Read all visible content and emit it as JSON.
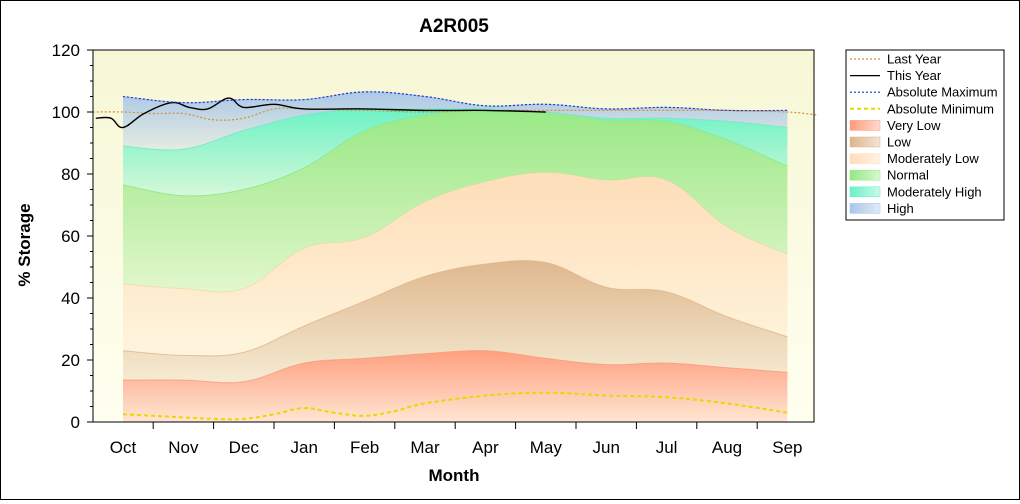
{
  "chart_data": {
    "type": "area",
    "title": "A2R005",
    "xlabel": "Month",
    "ylabel": "% Storage",
    "ylim": [
      0,
      120
    ],
    "yticks": [
      0,
      20,
      40,
      60,
      80,
      100,
      120
    ],
    "categories": [
      "Oct",
      "Nov",
      "Dec",
      "Jan",
      "Feb",
      "Mar",
      "Apr",
      "May",
      "Jun",
      "Jul",
      "Aug",
      "Sep"
    ],
    "x": [
      0,
      1,
      2,
      3,
      4,
      5,
      6,
      7,
      8,
      9,
      10,
      11
    ],
    "grid": false,
    "legend_position": "right",
    "bands": [
      {
        "name": "Very Low",
        "color": "#ff9a7a",
        "upper": [
          13.5,
          13.5,
          13,
          19,
          20.5,
          22,
          23,
          20.5,
          18.5,
          19,
          17.5,
          16
        ]
      },
      {
        "name": "Low",
        "color": "#ddb48a",
        "upper": [
          23,
          21.5,
          22.5,
          31,
          39,
          47,
          51,
          51.5,
          43.5,
          42,
          34,
          27.5
        ]
      },
      {
        "name": "Moderately Low",
        "color": "#ffdcb8",
        "upper": [
          44.5,
          43,
          43,
          56,
          59.5,
          71,
          77.5,
          80.5,
          78,
          78,
          63,
          54
        ]
      },
      {
        "name": "Normal",
        "color": "#94e882",
        "upper": [
          76.5,
          73,
          75,
          82,
          94,
          99,
          100.5,
          100,
          97.5,
          97,
          91,
          82.5
        ]
      },
      {
        "name": "Moderately High",
        "color": "#66f2c4",
        "upper": [
          89,
          88,
          94,
          99,
          101,
          101,
          101,
          100,
          98,
          98,
          97,
          95
        ]
      },
      {
        "name": "High",
        "color": "#a8c6e8",
        "upper": [
          105,
          103,
          104,
          104,
          106.5,
          105,
          102,
          102.5,
          101,
          101.5,
          100.5,
          100.5
        ]
      }
    ],
    "series": [
      {
        "name": "Last Year",
        "color": "#d4903c",
        "style": "dotted",
        "x": [
          -0.5,
          0,
          0.5,
          1,
          1.5,
          2,
          2.5,
          3,
          4,
          5,
          6,
          7,
          8,
          9,
          10,
          11,
          11.5
        ],
        "values": [
          100,
          100,
          99.5,
          99.5,
          97.5,
          98,
          101,
          101,
          100.5,
          100,
          100.5,
          100.5,
          100.5,
          100.5,
          100.5,
          100,
          99
        ]
      },
      {
        "name": "This Year",
        "color": "#000000",
        "style": "solid",
        "x": [
          -0.45,
          -0.2,
          0,
          0.35,
          0.8,
          1.1,
          1.4,
          1.75,
          2,
          2.5,
          3,
          4,
          5,
          6,
          7
        ],
        "values": [
          98,
          98,
          95,
          99.5,
          103,
          101.5,
          101,
          104.5,
          101.5,
          102.5,
          101,
          101,
          100.5,
          100.5,
          100
        ]
      },
      {
        "name": "Absolute Maximum",
        "color": "#2233cc",
        "style": "dotted",
        "x": [
          0,
          1,
          2,
          3,
          4,
          5,
          6,
          7,
          8,
          9,
          10,
          11
        ],
        "values": [
          105,
          103,
          104,
          104,
          106.5,
          105,
          102,
          102.5,
          101,
          101.5,
          100.5,
          100.5
        ]
      },
      {
        "name": "Absolute Minimum",
        "color": "#e8d800",
        "style": "dashed",
        "x": [
          0,
          0.5,
          1,
          1.5,
          2,
          2.5,
          3,
          3.5,
          4,
          4.5,
          5,
          6,
          7,
          8,
          9,
          10,
          11
        ],
        "values": [
          2.5,
          2,
          1.5,
          1,
          1,
          2.5,
          4.5,
          3,
          2,
          3.5,
          6,
          8.5,
          9.5,
          8.5,
          8,
          6,
          3
        ]
      }
    ],
    "legend": [
      {
        "label": "Last Year",
        "kind": "line",
        "color": "#d4903c",
        "style": "dotted"
      },
      {
        "label": "This Year",
        "kind": "line",
        "color": "#000000",
        "style": "solid"
      },
      {
        "label": "Absolute Maximum",
        "kind": "line",
        "color": "#2233cc",
        "style": "dotted"
      },
      {
        "label": "Absolute Minimum",
        "kind": "line",
        "color": "#e8d800",
        "style": "dashed"
      },
      {
        "label": "Very Low",
        "kind": "area",
        "color": "#ff9a7a"
      },
      {
        "label": "Low",
        "kind": "area",
        "color": "#ddb48a"
      },
      {
        "label": "Moderately Low",
        "kind": "area",
        "color": "#ffdcb8"
      },
      {
        "label": "Normal",
        "kind": "area",
        "color": "#94e882"
      },
      {
        "label": "Moderately High",
        "kind": "area",
        "color": "#66f2c4"
      },
      {
        "label": "High",
        "kind": "area",
        "color": "#a8c6e8"
      }
    ],
    "plot_background": "#fffff0"
  }
}
